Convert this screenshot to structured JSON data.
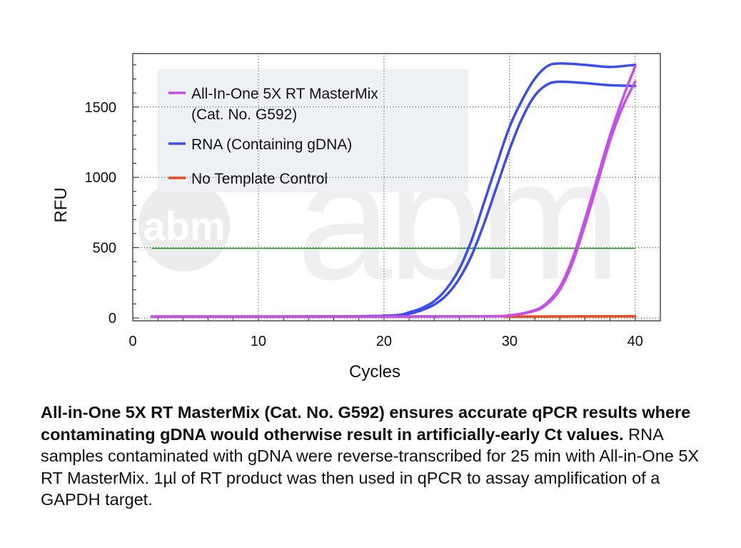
{
  "chart_data": {
    "type": "line",
    "xlabel": "Cycles",
    "ylabel": "RFU",
    "xlim": [
      0,
      42
    ],
    "ylim": [
      -20,
      1880
    ],
    "x_ticks": [
      0,
      10,
      20,
      30,
      40
    ],
    "y_ticks": [
      0,
      500,
      1000,
      1500
    ],
    "grid": "dotted",
    "legend_position": "top-left",
    "threshold": {
      "value": 495,
      "x_range": [
        1.5,
        40
      ],
      "color": "#1a9a1a"
    },
    "series": [
      {
        "name": "All-In-One 5X RT MasterMix\n(Cat. No. G592)",
        "color": "#c64fe8",
        "x": [
          1.5,
          10,
          20,
          28,
          30,
          32,
          33,
          34,
          35,
          36,
          37,
          38,
          39,
          40
        ],
        "y": [
          10,
          10,
          10,
          12,
          18,
          55,
          110,
          220,
          420,
          700,
          1000,
          1300,
          1560,
          1790
        ]
      },
      {
        "name": "",
        "color": "#c64fe8",
        "x": [
          1.5,
          10,
          20,
          28,
          30,
          32,
          33,
          34,
          35,
          36,
          37,
          38,
          39,
          40
        ],
        "y": [
          10,
          10,
          10,
          12,
          18,
          50,
          100,
          200,
          390,
          660,
          960,
          1260,
          1500,
          1680
        ]
      },
      {
        "name": "RNA (Containing gDNA)",
        "color": "#3a4ef0",
        "x": [
          1.5,
          10,
          18,
          21,
          22,
          23,
          24,
          25,
          26,
          27,
          28,
          29,
          30,
          31,
          32,
          33,
          34,
          36,
          38,
          40
        ],
        "y": [
          10,
          10,
          12,
          20,
          40,
          70,
          120,
          210,
          350,
          560,
          830,
          1100,
          1360,
          1550,
          1700,
          1790,
          1810,
          1800,
          1785,
          1800
        ]
      },
      {
        "name": "",
        "color": "#3a4ef0",
        "x": [
          1.5,
          10,
          18,
          21,
          22,
          23,
          24,
          25,
          26,
          27,
          28,
          29,
          30,
          31,
          32,
          33,
          34,
          36,
          38,
          40
        ],
        "y": [
          10,
          10,
          12,
          18,
          30,
          55,
          95,
          165,
          280,
          450,
          680,
          940,
          1200,
          1420,
          1580,
          1660,
          1680,
          1670,
          1655,
          1650
        ]
      },
      {
        "name": "No Template Control",
        "color": "#f0471c",
        "x": [
          29.5,
          40
        ],
        "y": [
          10,
          12
        ]
      }
    ]
  },
  "caption": {
    "bold": "All-in-One 5X RT MasterMix (Cat. No. G592) ensures accurate qPCR results where contaminating gDNA would otherwise result in artificially-early Ct values.",
    "normal": " RNA samples contaminated with gDNA were reverse-transcribed for 25 min with All-in-One 5X RT MasterMix. 1µl of RT product was then used in qPCR to assay amplification of a GAPDH target."
  },
  "watermark": "abm"
}
